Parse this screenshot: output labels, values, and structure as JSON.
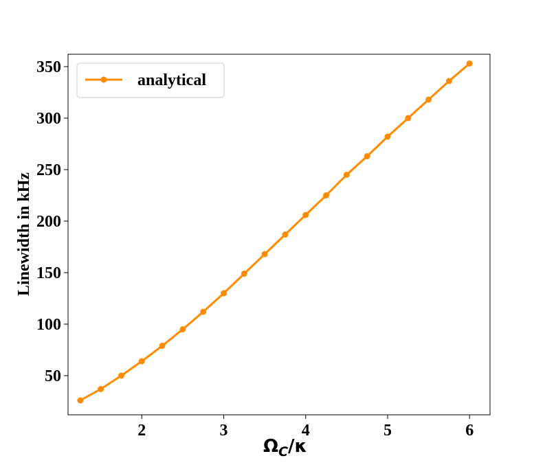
{
  "chart_data": {
    "type": "line",
    "xlabel": "Ω_C/κ",
    "xlabel_main": "Ω",
    "xlabel_sub": "C",
    "xlabel_rest": "/κ",
    "ylabel": "Linewidth in kHz",
    "xlim": [
      1.1,
      6.25
    ],
    "ylim": [
      12,
      362
    ],
    "xticks": [
      2,
      3,
      4,
      5,
      6
    ],
    "yticks": [
      50,
      100,
      150,
      200,
      250,
      300,
      350
    ],
    "grid": false,
    "legend_position": "top-left",
    "series": [
      {
        "name": "analytical",
        "color": "#ff8c00",
        "marker": "circle",
        "x": [
          1.25,
          1.5,
          1.75,
          2.0,
          2.25,
          2.5,
          2.75,
          3.0,
          3.25,
          3.5,
          3.75,
          4.0,
          4.25,
          4.5,
          4.75,
          5.0,
          5.25,
          5.5,
          5.75,
          6.0
        ],
        "y": [
          26,
          37,
          50,
          64,
          79,
          95,
          112,
          130,
          149,
          168,
          187,
          206,
          225,
          245,
          263,
          282,
          300,
          318,
          336,
          353
        ]
      }
    ]
  }
}
